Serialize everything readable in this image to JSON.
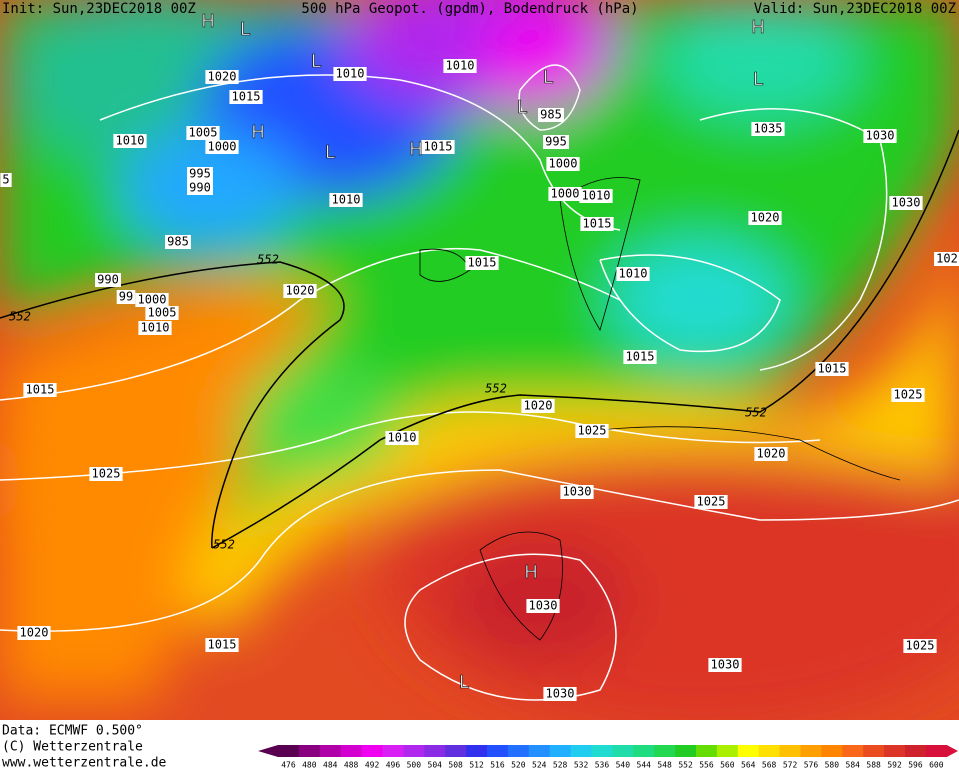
{
  "header": {
    "init": "Init: Sun,23DEC2018 00Z",
    "title": "500 hPa Geopot. (gpdm), Bodendruck (hPa)",
    "valid": "Valid: Sun,23DEC2018 00Z"
  },
  "map": {
    "isobar_labels": [
      "1020",
      "1010",
      "1010",
      "1015",
      "1005",
      "1000",
      "1010",
      "1015",
      "985",
      "995",
      "1000",
      "1035",
      "1030",
      "995",
      "990",
      "1010",
      "1000",
      "1010",
      "1015",
      "1020",
      "1030",
      "985",
      "1015",
      "990",
      "99",
      "1000",
      "1005",
      "1010",
      "1020",
      "1010",
      "102",
      "1015",
      "1015",
      "1015",
      "1020",
      "1025",
      "1025",
      "1010",
      "1020",
      "1025",
      "1030",
      "1025",
      "1030",
      "1020",
      "1015",
      "1030",
      "1025",
      "1030",
      "5"
    ],
    "contour_labels": [
      "552",
      "552",
      "552",
      "552",
      "552"
    ],
    "centers": [
      "H",
      "L",
      "L",
      "H",
      "L",
      "H",
      "L",
      "L",
      "H",
      "L",
      "H",
      "L"
    ]
  },
  "footer": {
    "data": "Data: ECMWF  0.500°",
    "copyright": "(C) Wetterzentrale",
    "url": "www.wetterzentrale.de"
  },
  "colorbar": {
    "values": [
      476,
      480,
      484,
      488,
      492,
      496,
      500,
      504,
      508,
      512,
      516,
      520,
      524,
      528,
      532,
      536,
      540,
      544,
      548,
      552,
      556,
      560,
      564,
      568,
      572,
      576,
      580,
      584,
      588,
      592,
      596,
      600
    ],
    "colors": [
      "#5a0050",
      "#880080",
      "#b000a8",
      "#d400d0",
      "#f000f0",
      "#d820f4",
      "#b028ee",
      "#8a2ce6",
      "#6030e0",
      "#3030ee",
      "#2250ff",
      "#2270ff",
      "#2290ff",
      "#20b0ff",
      "#20ccf0",
      "#20dcd0",
      "#20dca8",
      "#20dc80",
      "#22d850",
      "#22cc22",
      "#66dd00",
      "#aaee00",
      "#ffff00",
      "#ffe000",
      "#ffc000",
      "#ffa000",
      "#ff8400",
      "#f86818",
      "#ea4c20",
      "#dc3426",
      "#d0222c",
      "#d8103c"
    ]
  }
}
